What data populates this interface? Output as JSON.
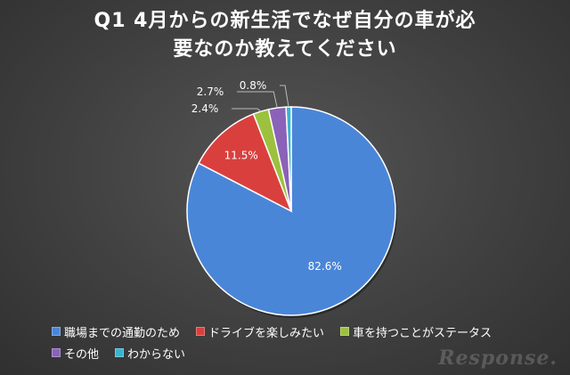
{
  "chart_data": {
    "type": "pie",
    "title_lines": [
      "Q1 4月からの新生活でなぜ自分の車が必",
      "要なのか教えてください"
    ],
    "series": [
      {
        "name": "職場までの通勤のため",
        "value": 82.6,
        "label": "82.6%",
        "color": "#4a86d8"
      },
      {
        "name": "ドライブを楽しみたい",
        "value": 11.5,
        "label": "11.5%",
        "color": "#d9403d"
      },
      {
        "name": "車を持つことがステータス",
        "value": 2.4,
        "label": "2.4%",
        "color": "#9bc13e"
      },
      {
        "name": "その他",
        "value": 2.7,
        "label": "2.7%",
        "color": "#8a62b8"
      },
      {
        "name": "わからない",
        "value": 0.8,
        "label": "0.8%",
        "color": "#36b5d1"
      }
    ],
    "legend_placement": "bottom"
  },
  "watermark": "Response."
}
